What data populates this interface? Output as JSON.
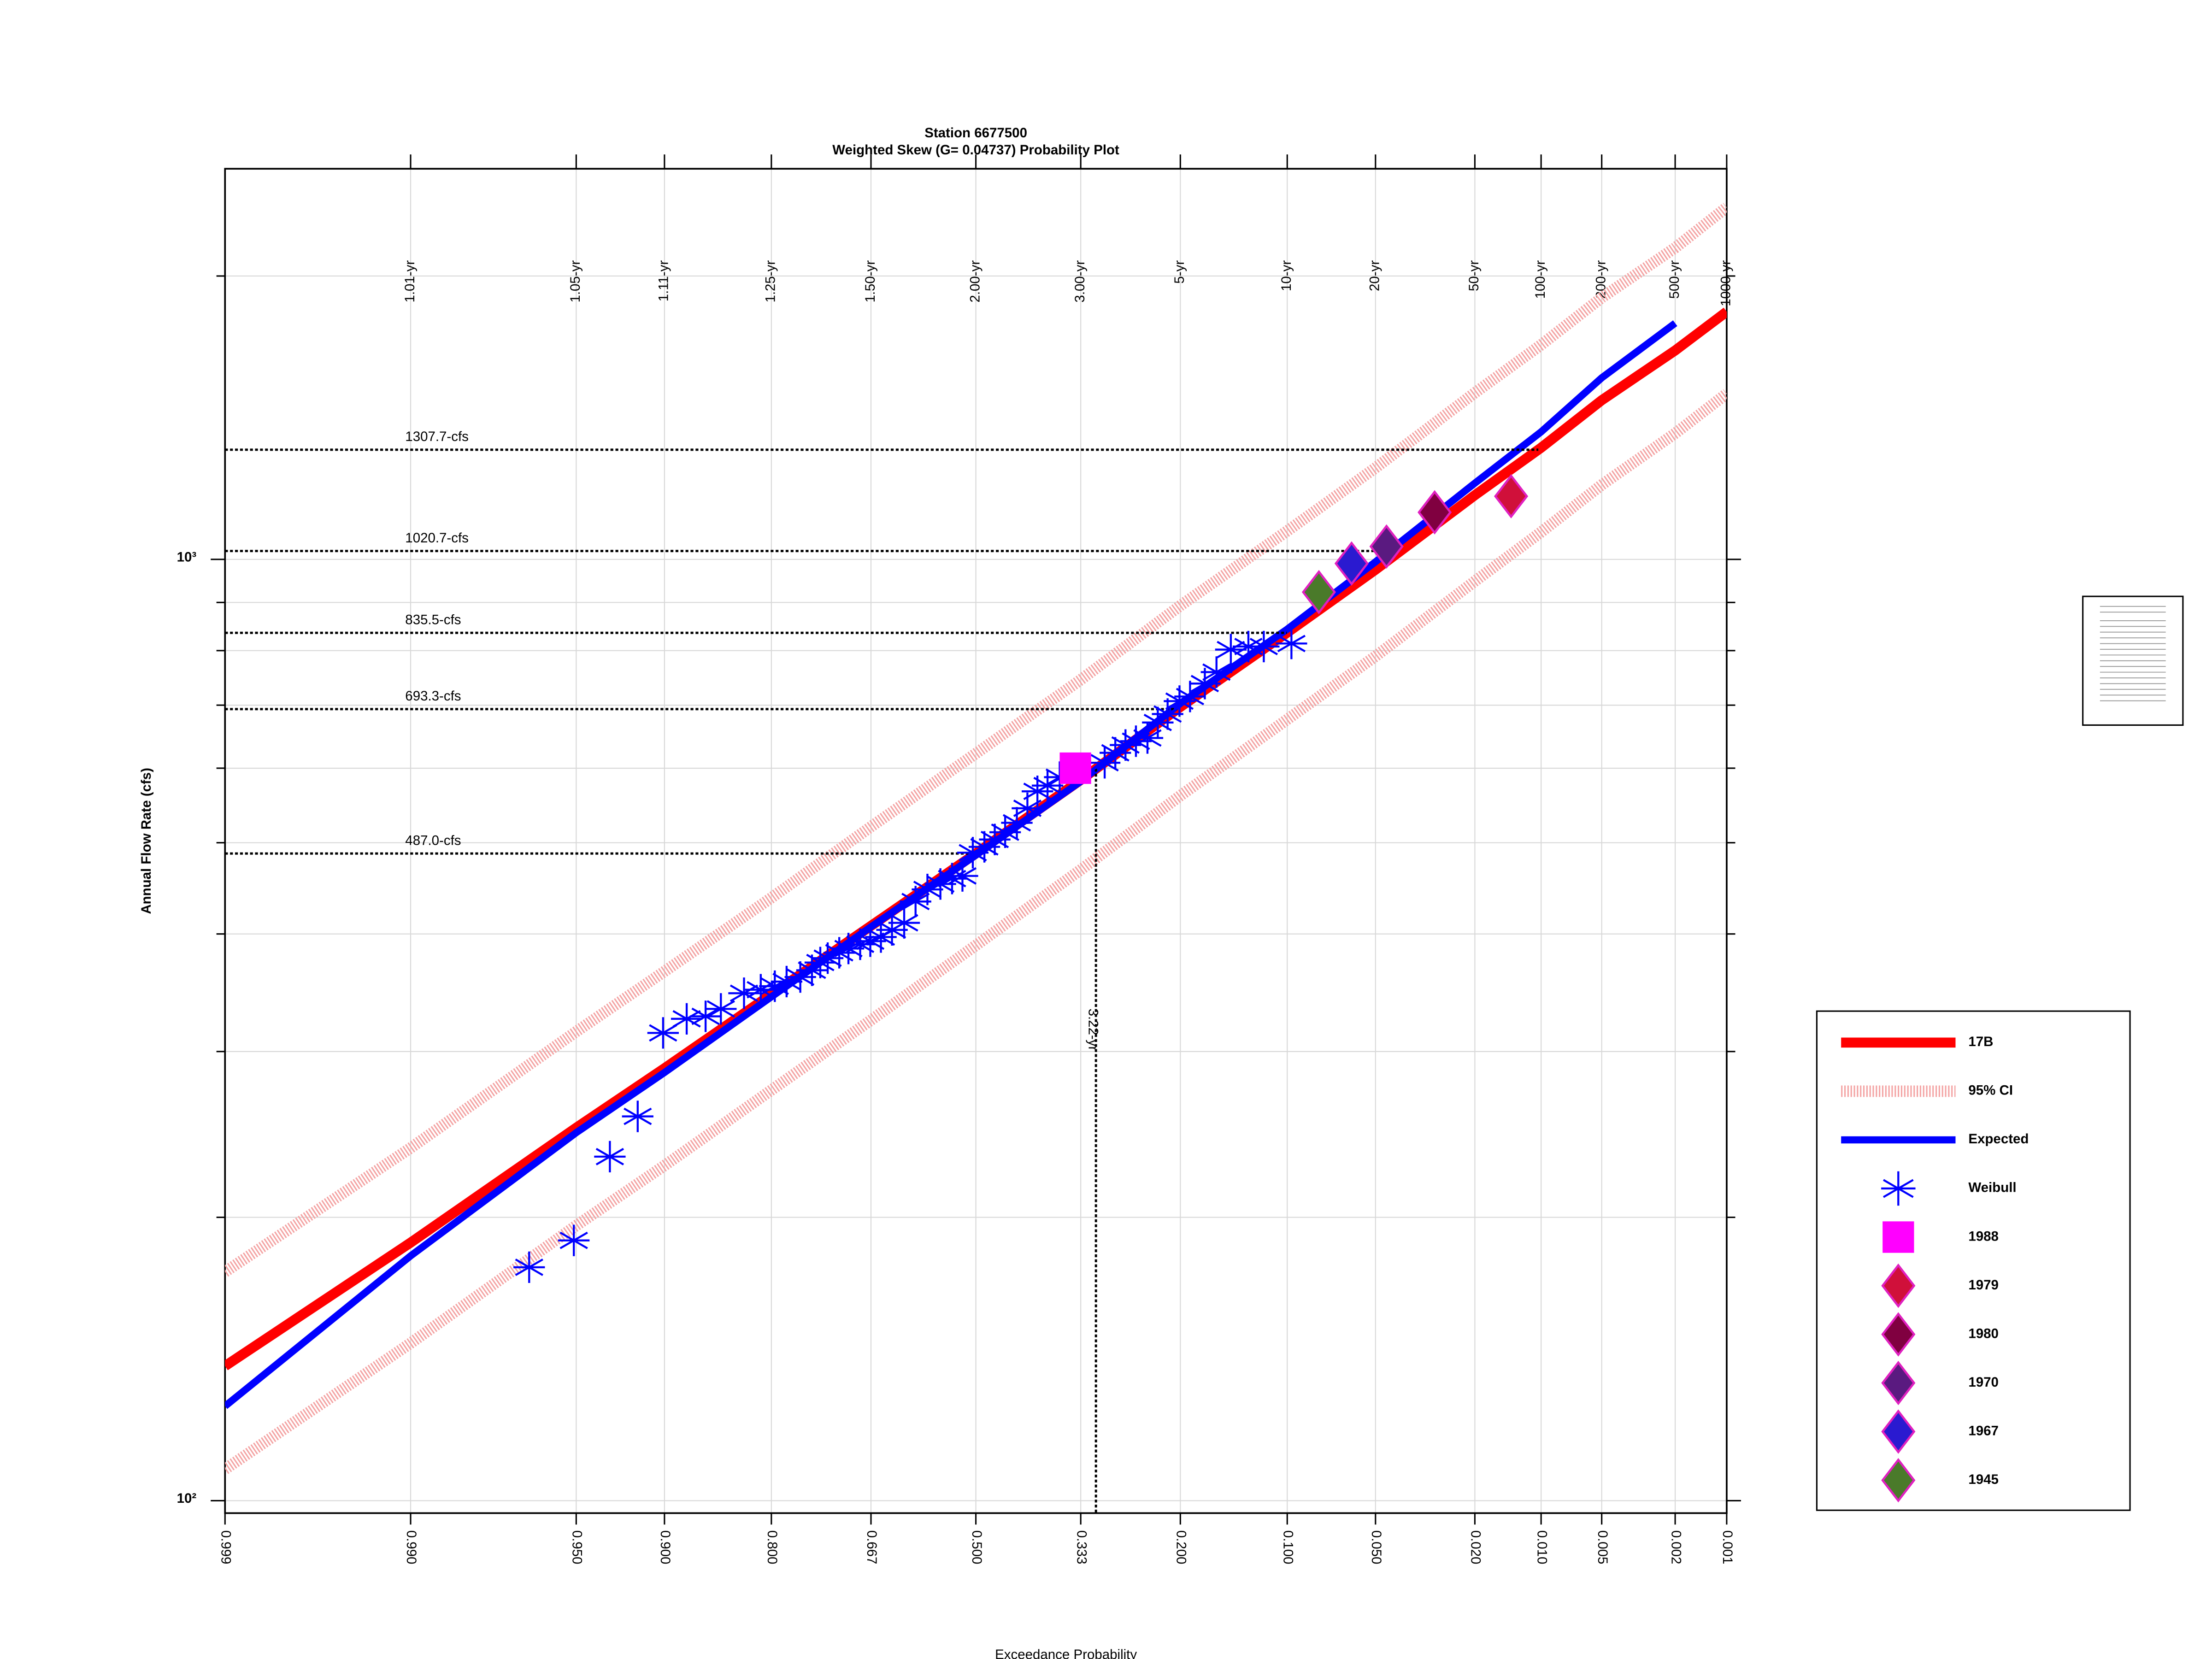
{
  "chart_data": {
    "type": "probability",
    "title": "Station 6677500",
    "subtitle": "Weighted Skew (G= 0.04737) Probability Plot",
    "x_label": "Exceedance Probability",
    "y_label": "Annual Flow Rate (cfs)",
    "xlim": [
      0.999,
      0.001
    ],
    "ylim": [
      97,
      2600
    ],
    "log_y": true,
    "grid": true,
    "legend": "right",
    "xticks": [
      0.999,
      {
        "value": 0.99,
        "label": "0.990"
      },
      {
        "value": 0.95,
        "label": "0.950"
      },
      {
        "value": 0.9,
        "label": "0.900"
      },
      {
        "value": 0.8,
        "label": "0.800"
      },
      0.667,
      {
        "value": 0.5,
        "label": "0.500"
      },
      0.333,
      {
        "value": 0.2,
        "label": "0.200"
      },
      {
        "value": 0.1,
        "label": "0.100"
      },
      {
        "value": 0.05,
        "label": "0.050"
      },
      {
        "value": 0.02,
        "label": "0.020"
      },
      {
        "value": 0.01,
        "label": "0.010"
      },
      0.005,
      0.002,
      0.001
    ],
    "top_ticks": [
      {
        "value": 0.99,
        "label": "1.01-yr"
      },
      {
        "value": 0.95,
        "label": "1.05-yr"
      },
      {
        "value": 0.9,
        "label": "1.11-yr"
      },
      {
        "value": 0.8,
        "label": "1.25-yr"
      },
      {
        "value": 0.667,
        "label": "1.50-yr"
      },
      {
        "value": 0.5,
        "label": "2.00-yr"
      },
      {
        "value": 0.333,
        "label": "3.00-yr"
      },
      {
        "value": 0.2,
        "label": "5-yr"
      },
      {
        "value": 0.1,
        "label": "10-yr"
      },
      {
        "value": 0.05,
        "label": "20-yr"
      },
      {
        "value": 0.02,
        "label": "50-yr"
      },
      {
        "value": 0.01,
        "label": "100-yr"
      },
      {
        "value": 0.005,
        "label": "200-yr"
      },
      {
        "value": 0.002,
        "label": "500-yr"
      },
      {
        "value": 0.001,
        "label": "1000-yr"
      }
    ],
    "yticks": [
      {
        "value": 100,
        "label": "10²"
      },
      {
        "value": 1000,
        "label": "10³"
      }
    ],
    "yminor": [
      200,
      300,
      400,
      500,
      600,
      700,
      800,
      900,
      2000
    ],
    "x": [
      0.999,
      0.99,
      0.95,
      0.9,
      0.8,
      0.667,
      0.5,
      0.333,
      0.2,
      0.1,
      0.05,
      0.02,
      0.01,
      0.005,
      0.002,
      0.001
    ],
    "series": [
      {
        "name": "17B",
        "color": "#ff0000",
        "values": [
          139,
          188,
          249,
          288,
          345,
          408,
          487,
          583,
          697,
          836,
          975,
          1170,
          1314,
          1476,
          1667,
          1833
        ]
      },
      {
        "name": "95% CI",
        "color": "#f4a4a4",
        "upper": [
          175,
          237,
          315,
          365,
          437,
          520,
          622,
          745,
          893,
          1072,
          1251,
          1503,
          1690,
          1897,
          2143,
          2366
        ],
        "lower": [
          108,
          147,
          196,
          227,
          273,
          324,
          389,
          468,
          561,
          676,
          789,
          948,
          1069,
          1200,
          1361,
          1500
        ]
      },
      {
        "name": "Expected",
        "color": "#0000ff",
        "values": [
          126,
          182,
          246,
          285,
          343,
          407,
          485,
          581,
          703,
          843,
          994,
          1205,
          1366,
          1559,
          1782,
          null
        ]
      }
    ],
    "weibull": {
      "name": "Weibull",
      "color": "#0000ff",
      "x": [
        0.967,
        0.951,
        0.934,
        0.918,
        0.901,
        0.883,
        0.867,
        0.853,
        0.83,
        0.812,
        0.796,
        0.782,
        0.765,
        0.75,
        0.739,
        0.729,
        0.713,
        0.7,
        0.683,
        0.668,
        0.652,
        0.635,
        0.616,
        0.598,
        0.579,
        0.558,
        0.539,
        0.522,
        0.505,
        0.486,
        0.469,
        0.452,
        0.433,
        0.416,
        0.4,
        0.384,
        0.365,
        0.298,
        0.283,
        0.269,
        0.255,
        0.24,
        0.227,
        0.215,
        0.201,
        0.189,
        0.173,
        0.161,
        0.147,
        0.131,
        0.118,
        0.097
      ],
      "values": [
        177,
        189,
        232,
        256,
        314,
        325,
        327,
        333,
        346,
        349,
        352,
        356,
        360,
        366,
        373,
        377,
        382,
        386,
        390,
        393,
        397,
        404,
        411,
        433,
        446,
        452,
        458,
        461,
        488,
        495,
        504,
        513,
        525,
        544,
        567,
        575,
        587,
        608,
        623,
        635,
        641,
        646,
        671,
        685,
        707,
        715,
        738,
        759,
        802,
        808,
        808,
        814
      ]
    },
    "events": [
      {
        "name": "1988",
        "marker": "square",
        "color": "#ff00ff",
        "x": [
          0.341
        ],
        "values": [
          600
        ]
      },
      {
        "name": "1979",
        "marker": "diamond",
        "color": "#d0103a",
        "x": [
          0.0138
        ],
        "values": [
          1167
        ]
      },
      {
        "name": "1980",
        "marker": "diamond",
        "color": "#800040",
        "x": [
          0.0295
        ],
        "values": [
          1122
        ]
      },
      {
        "name": "1970",
        "marker": "diamond",
        "color": "#5a1a80",
        "x": [
          0.0455
        ],
        "values": [
          1032
        ]
      },
      {
        "name": "1967",
        "marker": "diamond",
        "color": "#2a1ad0",
        "x": [
          0.061
        ],
        "values": [
          990
        ]
      },
      {
        "name": "1945",
        "marker": "diamond",
        "color": "#4a7a2a",
        "x": [
          0.079
        ],
        "values": [
          923
        ]
      }
    ],
    "hlines": [
      {
        "label": "1307.7-cfs",
        "value": 1307.7
      },
      {
        "label": "1020.7-cfs",
        "value": 1020.7
      },
      {
        "label": "835.5-cfs",
        "value": 835.5
      },
      {
        "label": "693.3-cfs",
        "value": 693.3
      },
      {
        "label": "487.0-cfs",
        "value": 487.0
      }
    ],
    "vline": {
      "label": "3.22-yr",
      "value": 3.22
    }
  }
}
